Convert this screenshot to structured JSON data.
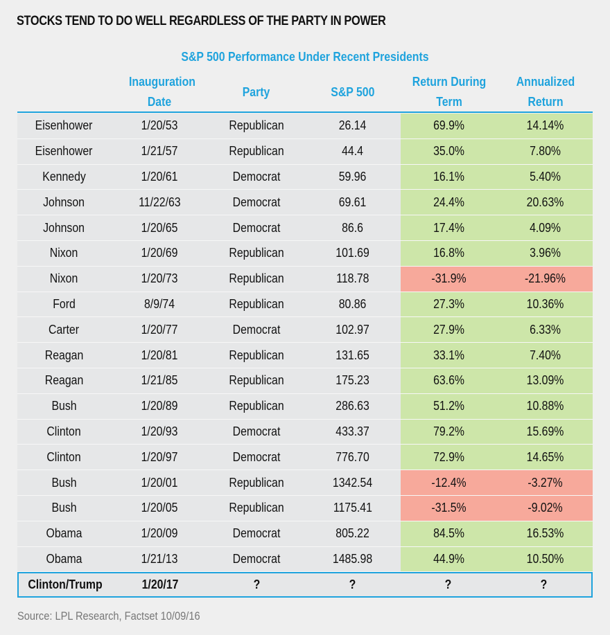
{
  "title": "STOCKS TEND TO DO WELL REGARDLESS OF THE PARTY IN POWER",
  "source": "Source: LPL Research, Factset   10/09/16",
  "colors": {
    "accent": "#1fa3dd",
    "positive": "#cde6a9",
    "negative": "#f7a99b",
    "row": "#e6e7e8"
  },
  "chart_data": {
    "type": "table",
    "title": "S&P 500 Performance Under Recent Presidents",
    "columns": [
      "",
      "Inauguration Date",
      "Party",
      "S&P 500",
      "Return During Term",
      "Annualized Return"
    ],
    "rows": [
      [
        "Eisenhower",
        "1/20/53",
        "Republican",
        "26.14",
        "69.9%",
        "14.14%"
      ],
      [
        "Eisenhower",
        "1/21/57",
        "Republican",
        "44.4",
        "35.0%",
        "7.80%"
      ],
      [
        "Kennedy",
        "1/20/61",
        "Democrat",
        "59.96",
        "16.1%",
        "5.40%"
      ],
      [
        "Johnson",
        "11/22/63",
        "Democrat",
        "69.61",
        "24.4%",
        "20.63%"
      ],
      [
        "Johnson",
        "1/20/65",
        "Democrat",
        "86.6",
        "17.4%",
        "4.09%"
      ],
      [
        "Nixon",
        "1/20/69",
        "Republican",
        "101.69",
        "16.8%",
        "3.96%"
      ],
      [
        "Nixon",
        "1/20/73",
        "Republican",
        "118.78",
        "-31.9%",
        "-21.96%"
      ],
      [
        "Ford",
        "8/9/74",
        "Republican",
        "80.86",
        "27.3%",
        "10.36%"
      ],
      [
        "Carter",
        "1/20/77",
        "Democrat",
        "102.97",
        "27.9%",
        "6.33%"
      ],
      [
        "Reagan",
        "1/20/81",
        "Republican",
        "131.65",
        "33.1%",
        "7.40%"
      ],
      [
        "Reagan",
        "1/21/85",
        "Republican",
        "175.23",
        "63.6%",
        "13.09%"
      ],
      [
        "Bush",
        "1/20/89",
        "Republican",
        "286.63",
        "51.2%",
        "10.88%"
      ],
      [
        "Clinton",
        "1/20/93",
        "Democrat",
        "433.37",
        "79.2%",
        "15.69%"
      ],
      [
        "Clinton",
        "1/20/97",
        "Democrat",
        "776.70",
        "72.9%",
        "14.65%"
      ],
      [
        "Bush",
        "1/20/01",
        "Republican",
        "1342.54",
        "-12.4%",
        "-3.27%"
      ],
      [
        "Bush",
        "1/20/05",
        "Republican",
        "1175.41",
        "-31.5%",
        "-9.02%"
      ],
      [
        "Obama",
        "1/20/09",
        "Democrat",
        "805.22",
        "84.5%",
        "16.53%"
      ],
      [
        "Obama",
        "1/21/13",
        "Democrat",
        "1485.98",
        "44.9%",
        "10.50%"
      ]
    ],
    "future_row": [
      "Clinton/Trump",
      "1/20/17",
      "?",
      "?",
      "?",
      "?"
    ]
  }
}
